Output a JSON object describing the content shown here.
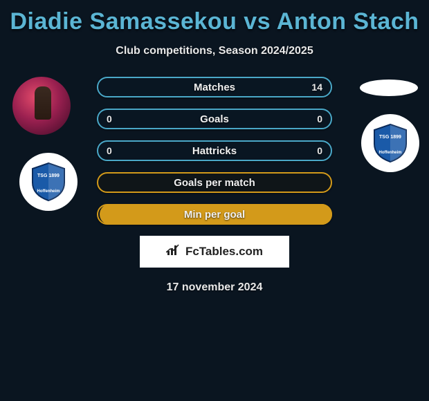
{
  "title": "Diadie Samassekou vs Anton Stach",
  "subtitle": "Club competitions, Season 2024/2025",
  "date": "17 november 2024",
  "branding": {
    "icon": "bar-chart-icon",
    "label": "FcTables.com"
  },
  "colors": {
    "title": "#5bb5d4",
    "text": "#e8e8e8",
    "bg": "#0a1520",
    "blue_border": "#4aa8c8",
    "yellow_border": "#d39a1a",
    "yellow_fill": "#d39a1a",
    "white": "#ffffff",
    "shield_blue": "#1a5aa8",
    "shield_dark": "#0a2a5a"
  },
  "bars": [
    {
      "label": "Matches",
      "left": "",
      "right": "14",
      "style": "blue",
      "right_fill_pct": 18
    },
    {
      "label": "Goals",
      "left": "0",
      "right": "0",
      "style": "blue",
      "right_fill_pct": 0
    },
    {
      "label": "Hattricks",
      "left": "0",
      "right": "0",
      "style": "blue",
      "right_fill_pct": 0
    },
    {
      "label": "Goals per match",
      "left": "",
      "right": "",
      "style": "yellow",
      "right_fill_pct": 0
    },
    {
      "label": "Min per goal",
      "left": "",
      "right": "",
      "style": "yellow",
      "right_fill_pct": 100
    }
  ],
  "avatars": {
    "left_player": "player-photo",
    "left_club": "hoffenheim-badge",
    "right_top": "blank-oval",
    "right_club": "hoffenheim-badge"
  }
}
